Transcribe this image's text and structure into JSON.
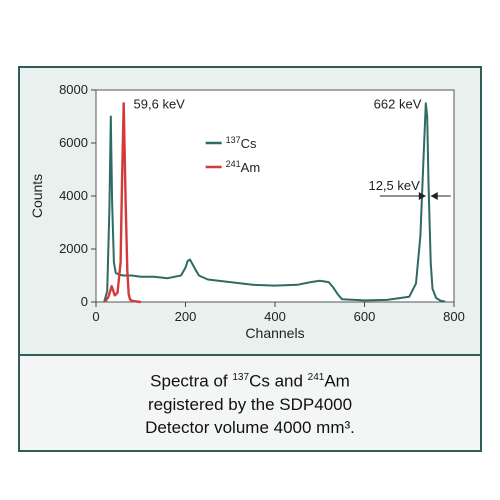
{
  "caption": {
    "line1_a": "Spectra of ",
    "line1_sup1": "137",
    "line1_b": "Cs and ",
    "line1_sup2": "241",
    "line1_c": "Am",
    "line2": "registered by the SDP4000",
    "line3": "Detector volume 4000 mm³."
  },
  "chart_data": {
    "type": "line",
    "xlabel": "Channels",
    "ylabel": "Counts",
    "xlim": [
      0,
      800
    ],
    "ylim": [
      0,
      8000
    ],
    "xticks": [
      0,
      200,
      400,
      600,
      800
    ],
    "yticks": [
      0,
      2000,
      4000,
      6000,
      8000
    ],
    "legend_position": "center-top",
    "series": [
      {
        "isotope": "Cs",
        "mass": "137",
        "color": "#2e6b63",
        "x": [
          18,
          25,
          30,
          33,
          36,
          40,
          44,
          50,
          60,
          80,
          100,
          130,
          160,
          190,
          200,
          205,
          210,
          215,
          220,
          230,
          250,
          300,
          350,
          400,
          450,
          480,
          500,
          520,
          530,
          540,
          550,
          600,
          650,
          700,
          715,
          725,
          732,
          737,
          740,
          743,
          748,
          752,
          760,
          770,
          780
        ],
        "y": [
          0,
          400,
          3500,
          7000,
          3800,
          1500,
          1100,
          1050,
          1000,
          1000,
          950,
          950,
          900,
          1000,
          1300,
          1550,
          1600,
          1450,
          1300,
          1000,
          850,
          750,
          650,
          620,
          650,
          750,
          800,
          750,
          550,
          300,
          100,
          60,
          80,
          200,
          700,
          2500,
          5500,
          7500,
          7000,
          4500,
          1500,
          500,
          150,
          50,
          20
        ]
      },
      {
        "isotope": "Am",
        "mass": "241",
        "color": "#d43a3a",
        "x": [
          20,
          28,
          35,
          38,
          42,
          48,
          55,
          58,
          62,
          66,
          70,
          73,
          76,
          80,
          90,
          100
        ],
        "y": [
          0,
          200,
          600,
          450,
          250,
          350,
          1500,
          4500,
          7500,
          4000,
          1200,
          300,
          100,
          50,
          20,
          0
        ]
      }
    ],
    "annotations": [
      {
        "text": "59,6 keV",
        "x": 66,
        "y": 7500
      },
      {
        "text": "662 keV",
        "x": 745,
        "y": 7500
      },
      {
        "text": "12,5 keV",
        "x": 737,
        "y": 4000
      }
    ]
  }
}
